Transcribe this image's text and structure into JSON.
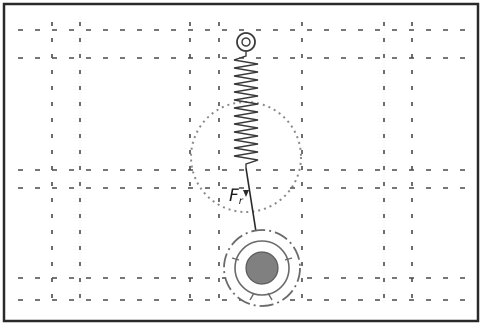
{
  "labels": {
    "force_main": "F",
    "force_sub": "r"
  },
  "colors": {
    "background": "#ffffff",
    "border": "#2a2a2a",
    "grid": "#4a4a4a",
    "spring": "#3a3a3a",
    "guide_circle": "#8a8a8a",
    "ball": "#808080"
  },
  "icons": {
    "spring": "coil-spring-icon",
    "pivot": "spring-anchor-ring-icon",
    "ball": "pendulum-ball-icon"
  }
}
